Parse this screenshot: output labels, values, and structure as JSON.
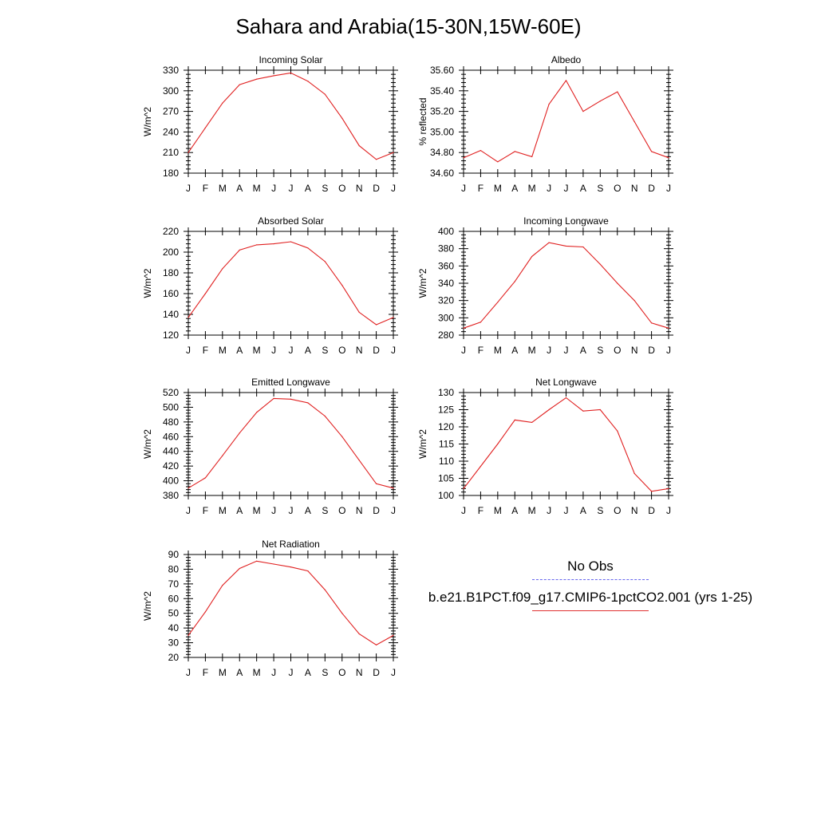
{
  "title": "Sahara and Arabia(15-30N,15W-60E)",
  "colors": {
    "model_line": "#e02020",
    "obs_line": "#6666ee",
    "axis": "#000000"
  },
  "legend": {
    "obs_label": "No Obs",
    "model_label": "b.e21.B1PCT.f09_g17.CMIP6-1pctCO2.001 (yrs 1-25)"
  },
  "chart_data": [
    {
      "type": "line",
      "title": "Incoming Solar",
      "ylabel": "W/m^2",
      "x": [
        "J",
        "F",
        "M",
        "A",
        "M",
        "J",
        "J",
        "A",
        "S",
        "O",
        "N",
        "D",
        "J"
      ],
      "ylim": [
        180,
        330
      ],
      "yticks": [
        "180",
        "210",
        "240",
        "270",
        "300",
        "330"
      ],
      "series": [
        {
          "values": [
            210,
            246,
            282,
            309,
            317,
            322,
            326,
            314,
            295,
            260,
            220,
            200,
            210
          ]
        }
      ]
    },
    {
      "type": "line",
      "title": "Albedo",
      "ylabel": "% reflected",
      "x": [
        "J",
        "F",
        "M",
        "A",
        "M",
        "J",
        "J",
        "A",
        "S",
        "O",
        "N",
        "D",
        "J"
      ],
      "ylim": [
        34.6,
        35.6
      ],
      "yticks": [
        "34.60",
        "34.80",
        "35.00",
        "35.20",
        "35.40",
        "35.60"
      ],
      "series": [
        {
          "values": [
            34.75,
            34.82,
            34.71,
            34.81,
            34.76,
            35.27,
            35.5,
            35.2,
            35.3,
            35.39,
            35.1,
            34.81,
            34.75
          ]
        }
      ]
    },
    {
      "type": "line",
      "title": "Absorbed Solar",
      "ylabel": "W/m^2",
      "x": [
        "J",
        "F",
        "M",
        "A",
        "M",
        "J",
        "J",
        "A",
        "S",
        "O",
        "N",
        "D",
        "J"
      ],
      "ylim": [
        120,
        220
      ],
      "yticks": [
        "120",
        "140",
        "160",
        "180",
        "200",
        "220"
      ],
      "series": [
        {
          "values": [
            137,
            160,
            184,
            202,
            207,
            208,
            210,
            204,
            191,
            168,
            142,
            130,
            137
          ]
        }
      ]
    },
    {
      "type": "line",
      "title": "Incoming Longwave",
      "ylabel": "W/m^2",
      "x": [
        "J",
        "F",
        "M",
        "A",
        "M",
        "J",
        "J",
        "A",
        "S",
        "O",
        "N",
        "D",
        "J"
      ],
      "ylim": [
        280,
        400
      ],
      "yticks": [
        "280",
        "300",
        "320",
        "340",
        "360",
        "380",
        "400"
      ],
      "series": [
        {
          "values": [
            288,
            295,
            318,
            342,
            371,
            387,
            383,
            382,
            362,
            340,
            320,
            294,
            288
          ]
        }
      ]
    },
    {
      "type": "line",
      "title": "Emitted Longwave",
      "ylabel": "W/m^2",
      "x": [
        "J",
        "F",
        "M",
        "A",
        "M",
        "J",
        "J",
        "A",
        "S",
        "O",
        "N",
        "D",
        "J"
      ],
      "ylim": [
        380,
        520
      ],
      "yticks": [
        "380",
        "400",
        "420",
        "440",
        "460",
        "480",
        "500",
        "520"
      ],
      "series": [
        {
          "values": [
            390,
            404,
            434,
            465,
            493,
            512,
            511,
            506,
            488,
            460,
            428,
            396,
            390
          ]
        }
      ]
    },
    {
      "type": "line",
      "title": "Net Longwave",
      "ylabel": "W/m^2",
      "x": [
        "J",
        "F",
        "M",
        "A",
        "M",
        "J",
        "J",
        "A",
        "S",
        "O",
        "N",
        "D",
        "J"
      ],
      "ylim": [
        100,
        130
      ],
      "yticks": [
        "100",
        "105",
        "110",
        "115",
        "120",
        "125",
        "130"
      ],
      "series": [
        {
          "values": [
            102,
            108.5,
            115,
            122,
            121.3,
            125,
            128.5,
            124.6,
            125,
            118.8,
            106.4,
            101.2,
            102
          ]
        }
      ]
    },
    {
      "type": "line",
      "title": "Net Radiation",
      "ylabel": "W/m^2",
      "x": [
        "J",
        "F",
        "M",
        "A",
        "M",
        "J",
        "J",
        "A",
        "S",
        "O",
        "N",
        "D",
        "J"
      ],
      "ylim": [
        20,
        90
      ],
      "yticks": [
        "20",
        "30",
        "40",
        "50",
        "60",
        "70",
        "80",
        "90"
      ],
      "series": [
        {
          "values": [
            35,
            51,
            69,
            80.5,
            85.5,
            83.5,
            81.5,
            78.8,
            66,
            50,
            36,
            28.5,
            35
          ]
        }
      ]
    }
  ]
}
